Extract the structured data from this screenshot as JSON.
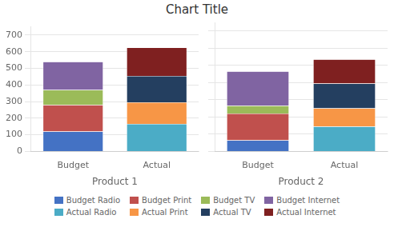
{
  "chart_data": [
    {
      "type": "bar",
      "title": "Chart Title",
      "xlabel": "Product 1",
      "categories": [
        "Budget",
        "Actual"
      ],
      "series": [
        {
          "name": "Budget Radio",
          "color": "#4472C4",
          "values": [
            120,
            null
          ]
        },
        {
          "name": "Budget Print",
          "color": "#C0504D",
          "values": [
            160,
            null
          ]
        },
        {
          "name": "Budget TV",
          "color": "#9BBB59",
          "values": [
            90,
            null
          ]
        },
        {
          "name": "Budget Internet",
          "color": "#8064A2",
          "values": [
            170,
            null
          ]
        },
        {
          "name": "Actual Radio",
          "color": "#4BACC6",
          "values": [
            null,
            165
          ]
        },
        {
          "name": "Actual Print",
          "color": "#F79646",
          "values": [
            null,
            130
          ]
        },
        {
          "name": "Actual TV",
          "color": "#243F60",
          "values": [
            null,
            160
          ]
        },
        {
          "name": "Actual Internet",
          "color": "#7F2020",
          "values": [
            null,
            170
          ]
        }
      ],
      "stacked": true,
      "ylim": [
        0,
        750
      ],
      "yticks": [
        0,
        100,
        200,
        300,
        400,
        500,
        600,
        700
      ],
      "grid": true,
      "legend": "bottom"
    },
    {
      "type": "bar",
      "xlabel": "Product 2",
      "categories": [
        "Budget",
        "Actual"
      ],
      "series": [
        {
          "name": "Budget Radio",
          "color": "#4472C4",
          "values": [
            65,
            null
          ]
        },
        {
          "name": "Budget Print",
          "color": "#C0504D",
          "values": [
            155,
            null
          ]
        },
        {
          "name": "Budget TV",
          "color": "#9BBB59",
          "values": [
            45,
            null
          ]
        },
        {
          "name": "Budget Internet",
          "color": "#8064A2",
          "values": [
            200,
            null
          ]
        },
        {
          "name": "Actual Radio",
          "color": "#4BACC6",
          "values": [
            null,
            145
          ]
        },
        {
          "name": "Actual Print",
          "color": "#F79646",
          "values": [
            null,
            105
          ]
        },
        {
          "name": "Actual TV",
          "color": "#243F60",
          "values": [
            null,
            145
          ]
        },
        {
          "name": "Actual Internet",
          "color": "#7F2020",
          "values": [
            null,
            140
          ]
        }
      ],
      "stacked": true,
      "ylim": [
        0,
        750
      ],
      "yticks": [
        0,
        100,
        200,
        300,
        400,
        500,
        600,
        700
      ],
      "grid": true,
      "legend": "bottom",
      "tick_labels": "x"
    }
  ]
}
